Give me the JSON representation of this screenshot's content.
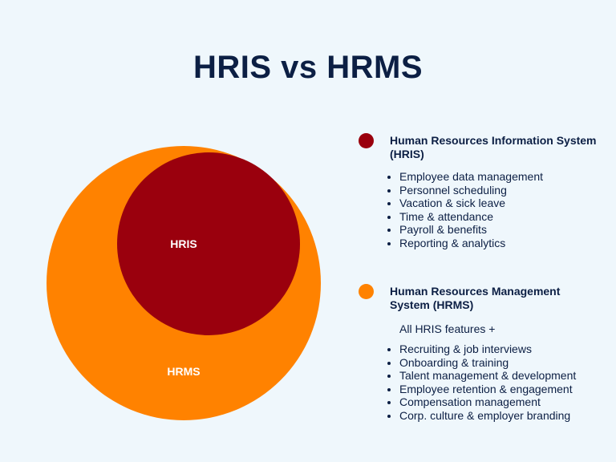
{
  "title": "HRIS vs HRMS",
  "colors": {
    "hris": "#9a000d",
    "hrms": "#ff8200",
    "text": "#0c1f44",
    "background": "#eff7fc"
  },
  "diagram": {
    "hris_label": "HRIS",
    "hrms_label": "HRMS"
  },
  "legend": {
    "hris": {
      "heading": "Human Resources Information System (HRIS)",
      "features": [
        "Employee data management",
        "Personnel scheduling",
        "Vacation & sick leave",
        "Time & attendance",
        "Payroll & benefits",
        "Reporting & analytics"
      ]
    },
    "hrms": {
      "heading": "Human Resources Management System (HRMS)",
      "intro": "All HRIS features +",
      "features": [
        "Recruiting & job interviews",
        "Onboarding & training",
        "Talent management & development",
        "Employee retention & engagement",
        "Compensation management",
        "Corp. culture & employer branding"
      ]
    }
  }
}
